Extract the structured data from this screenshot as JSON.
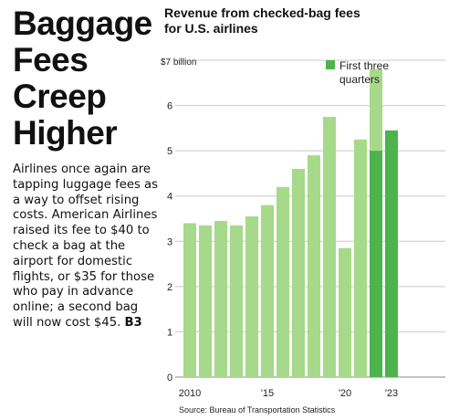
{
  "headline": [
    "Baggage",
    "Fees",
    "Creep",
    "Higher"
  ],
  "blurb": {
    "text": "Airlines once again are tapping luggage fees as a way to offset rising costs. American Airlines raised its fee to $40 to check a bag at the airport for domestic flights, or $35 for those who pay in advance online; a second bag will now cost $45.",
    "ref": "B3"
  },
  "source": "Source: Bureau of Transportation Statistics",
  "colors": {
    "bar": "#a6d98a",
    "bar_partial": "#4db34d",
    "bar_partial_top": "#a6d98a",
    "grid": "#c8c8c8",
    "text": "#111111"
  },
  "chart_data": {
    "type": "bar",
    "title": [
      "Revenue from checked-bag fees",
      "for U.S. airlines"
    ],
    "ylabel": "",
    "ylim": [
      0,
      7
    ],
    "yticks": [
      {
        "value": 0,
        "label": "0"
      },
      {
        "value": 1,
        "label": "1"
      },
      {
        "value": 2,
        "label": "2"
      },
      {
        "value": 3,
        "label": "3"
      },
      {
        "value": 4,
        "label": "4"
      },
      {
        "value": 5,
        "label": "5"
      },
      {
        "value": 6,
        "label": "6"
      },
      {
        "value": 7,
        "label": "$7 billion"
      }
    ],
    "categories": [
      "2010",
      "2011",
      "2012",
      "2013",
      "2014",
      "2015",
      "2016",
      "2017",
      "2018",
      "2019",
      "2020",
      "2021",
      "2022",
      "2023"
    ],
    "xtick_labels": [
      "2010",
      "",
      "",
      "",
      "",
      "'15",
      "",
      "",
      "",
      "",
      "'20",
      "",
      "",
      "'23"
    ],
    "series": [
      {
        "name": "",
        "values": [
          3.4,
          3.35,
          3.45,
          3.35,
          3.55,
          3.8,
          4.2,
          4.6,
          4.9,
          5.75,
          2.85,
          5.25,
          6.8,
          null
        ]
      },
      {
        "name": "First three quarters",
        "values": [
          null,
          null,
          null,
          null,
          null,
          null,
          null,
          null,
          null,
          null,
          null,
          null,
          5.0,
          5.45
        ]
      }
    ],
    "legend": {
      "label": "First three quarters",
      "position": "top-right"
    },
    "grid": true
  }
}
